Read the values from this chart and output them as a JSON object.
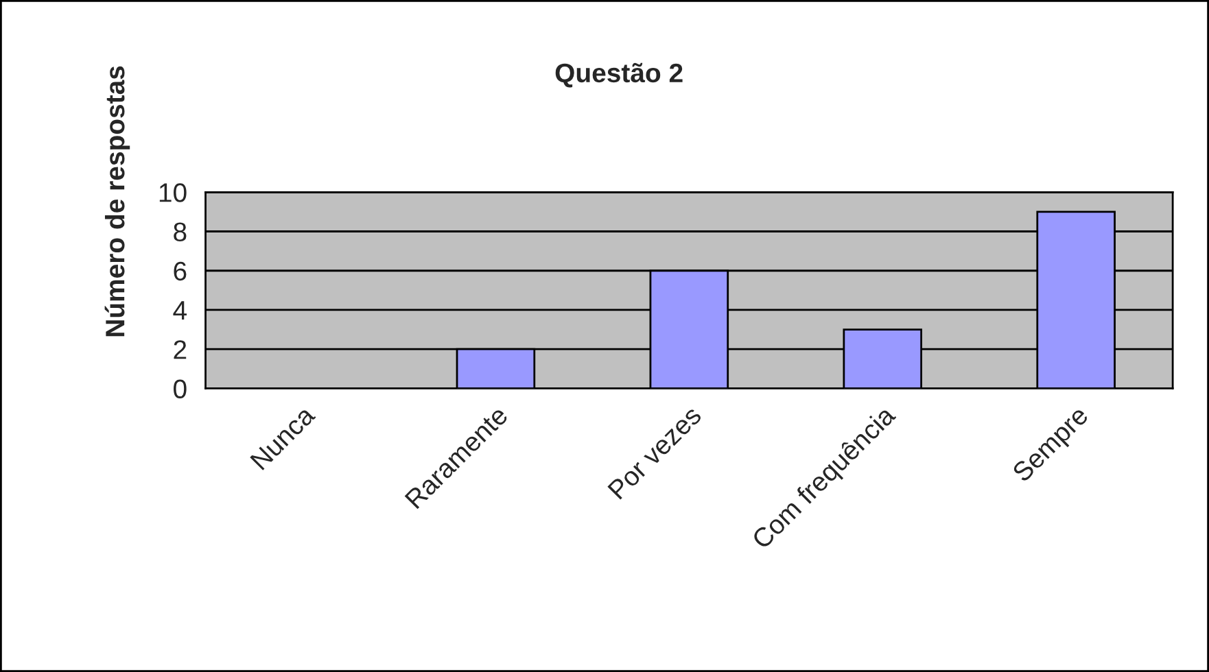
{
  "chart_data": {
    "type": "bar",
    "title": "Questão 2",
    "ylabel": "Número de respostas",
    "categories": [
      "Nunca",
      "Raramente",
      "Por vezes",
      "Com frequência",
      "Sempre"
    ],
    "values": [
      0,
      2,
      6,
      3,
      9
    ],
    "color": "#9999ff",
    "ylim": [
      0,
      10
    ],
    "yticks": [
      0,
      2,
      4,
      6,
      8,
      10
    ],
    "grid": "y",
    "legend": false
  }
}
